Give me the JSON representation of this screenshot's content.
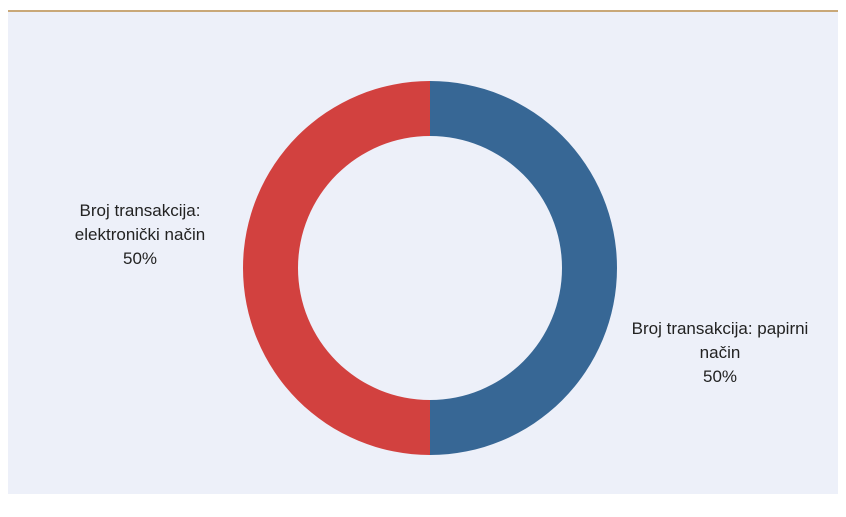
{
  "chart_data": {
    "type": "donut",
    "categories": [
      "Broj transakcija: papirni način",
      "Broj transakcija: elektronički način"
    ],
    "values": [
      50,
      50
    ],
    "value_labels": [
      "50%",
      "50%"
    ],
    "colors": [
      "#376795",
      "#d2413f"
    ]
  }
}
